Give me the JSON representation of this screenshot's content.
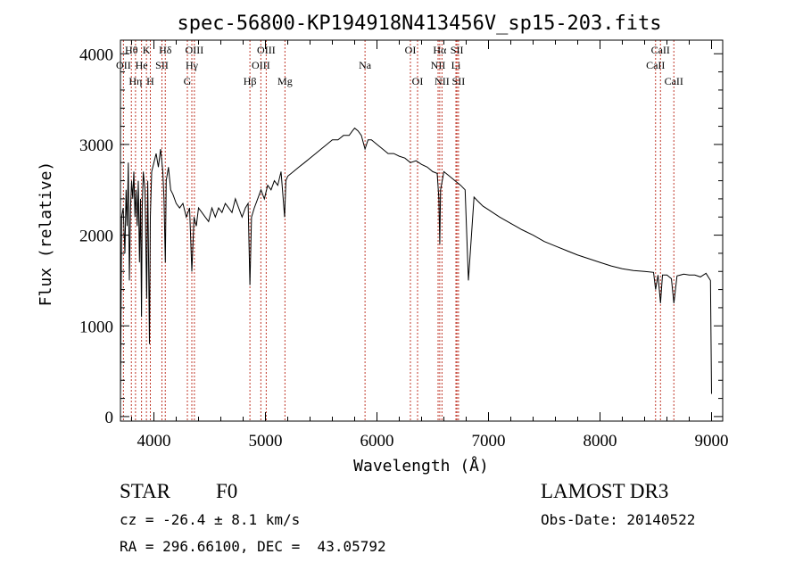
{
  "chart_data": {
    "type": "line",
    "title": "spec-56800-KP194918N413456V_sp15-203.fits",
    "xlabel": "Wavelength (Å)",
    "ylabel": "Flux (relative)",
    "xlim": [
      3700,
      9100
    ],
    "ylim": [
      -50,
      4150
    ],
    "xticks": [
      4000,
      5000,
      6000,
      7000,
      8000,
      9000
    ],
    "yticks": [
      0,
      1000,
      2000,
      3000,
      4000
    ],
    "series": [
      {
        "name": "flux",
        "x": [
          3700,
          3710,
          3725,
          3740,
          3750,
          3760,
          3770,
          3780,
          3790,
          3800,
          3810,
          3820,
          3830,
          3840,
          3850,
          3860,
          3870,
          3880,
          3889,
          3895,
          3905,
          3920,
          3935,
          3945,
          3960,
          3968,
          3980,
          4000,
          4020,
          4040,
          4060,
          4080,
          4090,
          4102,
          4110,
          4130,
          4150,
          4170,
          4200,
          4230,
          4260,
          4290,
          4320,
          4340,
          4360,
          4380,
          4400,
          4430,
          4460,
          4490,
          4520,
          4550,
          4580,
          4610,
          4640,
          4670,
          4700,
          4730,
          4760,
          4790,
          4820,
          4845,
          4861,
          4875,
          4900,
          4930,
          4960,
          4990,
          5020,
          5050,
          5080,
          5110,
          5140,
          5172,
          5183,
          5200,
          5250,
          5300,
          5350,
          5400,
          5450,
          5500,
          5550,
          5600,
          5650,
          5700,
          5750,
          5780,
          5800,
          5830,
          5860,
          5893,
          5920,
          5950,
          6000,
          6050,
          6100,
          6150,
          6200,
          6250,
          6300,
          6350,
          6400,
          6450,
          6500,
          6540,
          6555,
          6563,
          6570,
          6600,
          6650,
          6700,
          6750,
          6790,
          6820,
          6870,
          6900,
          6950,
          7000,
          7100,
          7200,
          7300,
          7400,
          7500,
          7600,
          7700,
          7800,
          7900,
          8000,
          8100,
          8200,
          8300,
          8400,
          8480,
          8498,
          8520,
          8542,
          8560,
          8600,
          8640,
          8662,
          8690,
          8750,
          8800,
          8850,
          8900,
          8950,
          8990,
          9000
        ],
        "values": [
          200,
          2200,
          2300,
          1800,
          2500,
          2100,
          2800,
          1500,
          2300,
          2600,
          2400,
          2700,
          2200,
          2500,
          2100,
          2600,
          1700,
          2400,
          1100,
          2300,
          2700,
          2500,
          1300,
          2600,
          800,
          2200,
          2700,
          2800,
          2900,
          2750,
          2950,
          2700,
          2400,
          1700,
          2600,
          2750,
          2500,
          2450,
          2350,
          2300,
          2350,
          2200,
          2300,
          1600,
          2200,
          2100,
          2300,
          2250,
          2200,
          2150,
          2300,
          2200,
          2300,
          2250,
          2350,
          2300,
          2250,
          2400,
          2300,
          2200,
          2300,
          2350,
          1450,
          2200,
          2300,
          2400,
          2500,
          2400,
          2550,
          2500,
          2600,
          2550,
          2700,
          2200,
          2600,
          2650,
          2700,
          2750,
          2800,
          2850,
          2900,
          2950,
          3000,
          3050,
          3050,
          3100,
          3100,
          3150,
          3180,
          3150,
          3100,
          2950,
          3050,
          3050,
          3000,
          2950,
          2900,
          2900,
          2870,
          2850,
          2800,
          2820,
          2780,
          2750,
          2700,
          2680,
          2400,
          1900,
          2500,
          2700,
          2650,
          2600,
          2550,
          2500,
          1500,
          2420,
          2380,
          2320,
          2280,
          2200,
          2130,
          2060,
          2000,
          1930,
          1880,
          1830,
          1780,
          1740,
          1700,
          1660,
          1630,
          1610,
          1600,
          1590,
          1400,
          1560,
          1250,
          1560,
          1560,
          1520,
          1250,
          1550,
          1570,
          1560,
          1560,
          1540,
          1580,
          1500,
          250
        ]
      }
    ],
    "spectral_lines": [
      {
        "label": "OII",
        "wavelength": 3727,
        "row": 2
      },
      {
        "label": "Hθ",
        "wavelength": 3798,
        "row": 1
      },
      {
        "label": "Hη",
        "wavelength": 3835,
        "row": 3
      },
      {
        "label": "He",
        "wavelength": 3889,
        "row": 2
      },
      {
        "label": "K",
        "wavelength": 3933,
        "row": 1
      },
      {
        "label": "H",
        "wavelength": 3968,
        "row": 3
      },
      {
        "label": "SII",
        "wavelength": 4072,
        "row": 2
      },
      {
        "label": "Hδ",
        "wavelength": 4102,
        "row": 1
      },
      {
        "label": "G",
        "wavelength": 4300,
        "row": 3
      },
      {
        "label": "Hγ",
        "wavelength": 4340,
        "row": 2
      },
      {
        "label": "OIII",
        "wavelength": 4363,
        "row": 1
      },
      {
        "label": "Hβ",
        "wavelength": 4861,
        "row": 3
      },
      {
        "label": "OIII",
        "wavelength": 4959,
        "row": 2
      },
      {
        "label": "OIII",
        "wavelength": 5007,
        "row": 1
      },
      {
        "label": "Mg",
        "wavelength": 5175,
        "row": 3
      },
      {
        "label": "Na",
        "wavelength": 5893,
        "row": 2
      },
      {
        "label": "OI",
        "wavelength": 6300,
        "row": 1
      },
      {
        "label": "OI",
        "wavelength": 6364,
        "row": 3
      },
      {
        "label": "NII",
        "wavelength": 6548,
        "row": 2
      },
      {
        "label": "Hα",
        "wavelength": 6563,
        "row": 1
      },
      {
        "label": "NII",
        "wavelength": 6583,
        "row": 3
      },
      {
        "label": "Li",
        "wavelength": 6708,
        "row": 2
      },
      {
        "label": "SII",
        "wavelength": 6717,
        "row": 1
      },
      {
        "label": "SII",
        "wavelength": 6731,
        "row": 3
      },
      {
        "label": "CaII",
        "wavelength": 8498,
        "row": 2
      },
      {
        "label": "CaII",
        "wavelength": 8542,
        "row": 1
      },
      {
        "label": "CaII",
        "wavelength": 8662,
        "row": 3
      }
    ]
  },
  "info": {
    "object_class": "STAR",
    "subclass": "F0",
    "survey": "LAMOST DR3",
    "cz": "cz = -26.4 ± 8.1 km/s",
    "obs_date": "Obs-Date: 20140522",
    "coords": "RA = 296.66100, DEC =  43.05792"
  },
  "colors": {
    "spectrum": "#000000",
    "line_marker": "#c0392b",
    "axis": "#000000"
  }
}
